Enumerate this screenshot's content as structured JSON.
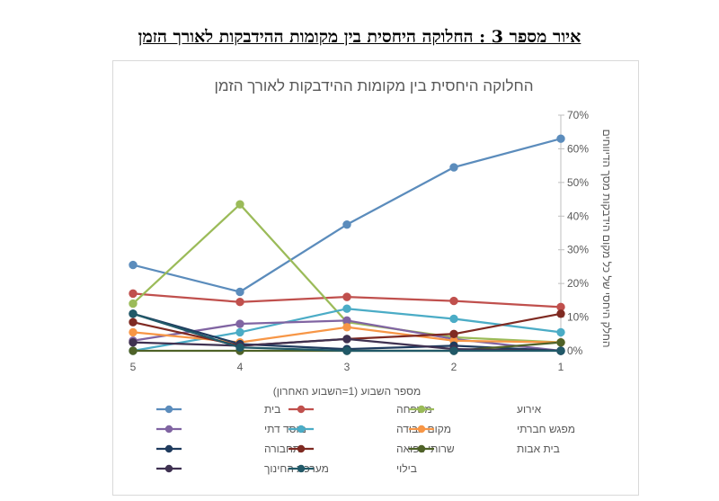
{
  "figure_caption": "איור מספר 3 : החלוקה היחסית בין מקומות ההידבקות לאורך הזמן",
  "chart_data": {
    "type": "line",
    "title": "החלוקה היחסית בין מקומות ההידבקות לאורך הזמן",
    "xlabel": "מספר השבוע (1=השבוע האחרון)",
    "ylabel": "החלק היחסי  של כל מקום הידבקות מסך הדיווחים",
    "categories": [
      "5",
      "4",
      "3",
      "2",
      "1"
    ],
    "ylim": [
      0,
      70
    ],
    "yticks": [
      "0%",
      "10%",
      "20%",
      "30%",
      "40%",
      "50%",
      "60%",
      "70%"
    ],
    "series": [
      {
        "name": "בית",
        "color": "#5b8cbc",
        "values": [
          25.5,
          17.5,
          37.5,
          54.5,
          63
        ]
      },
      {
        "name": "משפחה",
        "color": "#c0504d",
        "values": [
          17,
          14.5,
          16,
          14.8,
          13
        ]
      },
      {
        "name": "אירוע",
        "color": "#9bbb59",
        "values": [
          14,
          43.5,
          8.5,
          4,
          2.5
        ]
      },
      {
        "name": "מקום עבודה",
        "color": "#4bacc6",
        "values": [
          0,
          5.5,
          12.5,
          9.5,
          5.5
        ]
      },
      {
        "name": "מוסד דתי",
        "color": "#8064a2",
        "values": [
          3,
          8,
          9,
          3.5,
          0
        ]
      },
      {
        "name": "מפגש חברתי",
        "color": "#f79646",
        "values": [
          5.5,
          2.5,
          7,
          3,
          2.5
        ]
      },
      {
        "name": "שרותי רפואה",
        "color": "#7f2a22",
        "values": [
          8.5,
          1.5,
          3.5,
          5,
          11
        ]
      },
      {
        "name": "תחבורה",
        "color": "#1f3b5e",
        "values": [
          11,
          2,
          0.5,
          1.5,
          0
        ]
      },
      {
        "name": "בית אבות",
        "color": "#4f6228",
        "values": [
          0,
          0,
          0,
          0,
          2.5
        ]
      },
      {
        "name": "מערכת החינוך",
        "color": "#3f3151",
        "values": [
          2.5,
          1.5,
          3.5,
          0.5,
          0
        ]
      },
      {
        "name": "בילוי",
        "color": "#215968",
        "values": [
          11,
          1,
          0,
          0,
          0
        ]
      }
    ],
    "legend": [
      [
        "בית",
        "משפחה",
        "אירוע"
      ],
      [
        "מוסד דתי",
        "מקום עבודה",
        "מפגש חברתי"
      ],
      [
        "תחבורה",
        "שרותי רפואה",
        "בית אבות"
      ],
      [
        "מערכת החינוך",
        "בילוי"
      ]
    ]
  }
}
